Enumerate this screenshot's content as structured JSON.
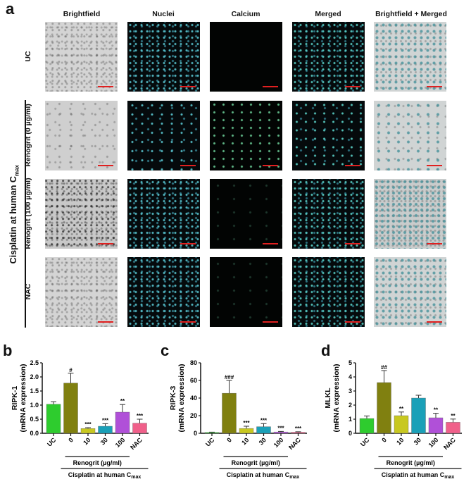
{
  "panel_a": {
    "letter": "a",
    "columns": [
      "Brightfield",
      "Nuclei",
      "Calcium",
      "Merged",
      "Brightfield + Merged"
    ],
    "rows": [
      "UC",
      "Renogrit (0 µg/ml)",
      "Renogrit (100 µg/ml)",
      "NAC"
    ],
    "group_label": "Cisplatin at human C",
    "group_label_sub": "max",
    "scale_bar_color": "#e02020"
  },
  "chart_data": [
    {
      "panel": "b",
      "type": "bar",
      "title": "",
      "ylabel": "RIPK-1",
      "ylabel2": "(mRNA expression)",
      "xlabel": "",
      "categories": [
        "UC",
        "0",
        "10",
        "30",
        "100",
        "NAC"
      ],
      "values": [
        1.03,
        1.78,
        0.17,
        0.25,
        0.75,
        0.36
      ],
      "errors": [
        0.09,
        0.35,
        0.03,
        0.09,
        0.27,
        0.14
      ],
      "significance": [
        "",
        "#",
        "***",
        "***",
        "**",
        "***"
      ],
      "ylim": [
        0,
        2.5
      ],
      "yticks": [
        "0.0",
        "0.5",
        "1.0",
        "1.5",
        "2.0",
        "2.5"
      ],
      "colors": [
        "#2ecc2e",
        "#808010",
        "#c8c820",
        "#1aa0b8",
        "#b050d8",
        "#f0608a"
      ],
      "group1": "Renogrit (µg/ml)",
      "group2": "Cisplatin at human C",
      "group2_sub": "max",
      "grid": false
    },
    {
      "panel": "c",
      "type": "bar",
      "title": "",
      "ylabel": "RIPK-3",
      "ylabel2": "(mRNA expression)",
      "xlabel": "",
      "categories": [
        "UC",
        "0",
        "10",
        "30",
        "100",
        "NAC"
      ],
      "values": [
        1.0,
        45.5,
        5.5,
        7.5,
        1.5,
        1.2
      ],
      "errors": [
        0.3,
        14.5,
        2.5,
        3.5,
        0.6,
        0.5
      ],
      "significance": [
        "",
        "###",
        "***",
        "***",
        "***",
        "***"
      ],
      "ylim": [
        0,
        80
      ],
      "yticks": [
        "0",
        "20",
        "40",
        "60",
        "80"
      ],
      "colors": [
        "#2ecc2e",
        "#808010",
        "#c8c820",
        "#1aa0b8",
        "#b050d8",
        "#f0608a"
      ],
      "group1": "Renogrit (µg/ml)",
      "group2": "Cisplatin at human C",
      "group2_sub": "max",
      "grid": false
    },
    {
      "panel": "d",
      "type": "bar",
      "title": "",
      "ylabel": "MLKL",
      "ylabel2": "(mRNA expression)",
      "xlabel": "",
      "categories": [
        "UC",
        "0",
        "10",
        "30",
        "100",
        "NAC"
      ],
      "values": [
        1.05,
        3.6,
        1.25,
        2.5,
        1.1,
        0.78
      ],
      "errors": [
        0.18,
        0.85,
        0.26,
        0.2,
        0.32,
        0.23
      ],
      "significance": [
        "",
        "##",
        "**",
        "",
        "**",
        "**"
      ],
      "ylim": [
        0,
        5
      ],
      "yticks": [
        "0",
        "1",
        "2",
        "3",
        "4",
        "5"
      ],
      "colors": [
        "#2ecc2e",
        "#808010",
        "#c8c820",
        "#1aa0b8",
        "#b050d8",
        "#f0608a"
      ],
      "group1": "Renogrit (µg/ml)",
      "group2": "Cisplatin at human C",
      "group2_sub": "max",
      "grid": false
    }
  ]
}
